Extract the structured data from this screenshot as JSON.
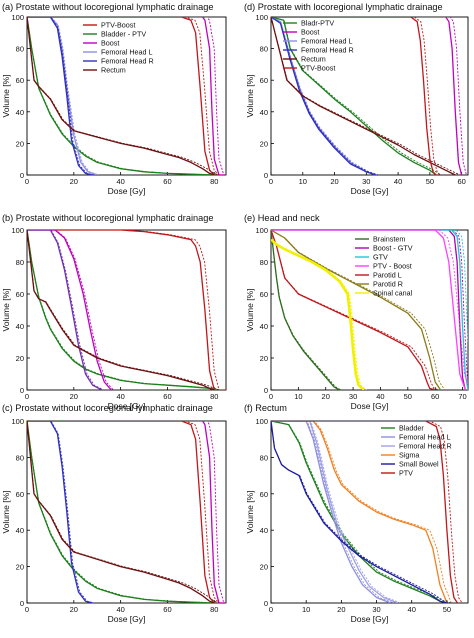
{
  "figure": {
    "panel_count": 6
  },
  "chart_data": [
    {
      "id": "a",
      "type": "line",
      "title": "(a) Prostate without locoregional lymphatic drainage",
      "xlabel": "Dose [Gy]",
      "ylabel": "Volume [%]",
      "xlim": [
        0,
        85
      ],
      "ylim": [
        0,
        100
      ],
      "xticks": [
        0,
        20,
        40,
        60,
        80
      ],
      "yticks": [
        0,
        20,
        40,
        60,
        80,
        100
      ],
      "legend": "top-right",
      "series": [
        {
          "name": "PTV-Boost",
          "color": "#c0171b",
          "x": [
            0,
            66,
            70,
            72,
            74,
            76,
            78,
            80,
            85
          ],
          "y": [
            100,
            100,
            98,
            90,
            55,
            15,
            3,
            0,
            0
          ]
        },
        {
          "name": "Bladder - PTV",
          "color": "#1e7f1e",
          "x": [
            0,
            2,
            5,
            10,
            15,
            20,
            25,
            30,
            40,
            50,
            60,
            70,
            80
          ],
          "y": [
            100,
            80,
            55,
            38,
            26,
            18,
            12,
            8,
            4,
            2,
            1,
            0.5,
            0
          ]
        },
        {
          "name": "Boost",
          "color": "#c000c0",
          "x": [
            0,
            75,
            76,
            78,
            79,
            80,
            82,
            85
          ],
          "y": [
            100,
            100,
            98,
            80,
            40,
            10,
            0,
            0
          ]
        },
        {
          "name": "Femoral Head L",
          "color": "#8f8fe0",
          "x": [
            0,
            10,
            13,
            15,
            17,
            20,
            23,
            26,
            30
          ],
          "y": [
            100,
            100,
            95,
            80,
            55,
            25,
            8,
            2,
            0
          ]
        },
        {
          "name": "Femoral Head R",
          "color": "#3030c0",
          "x": [
            0,
            10,
            13,
            15,
            17,
            19,
            22,
            25,
            28
          ],
          "y": [
            100,
            100,
            93,
            75,
            50,
            22,
            6,
            1,
            0
          ]
        },
        {
          "name": "Rectum",
          "color": "#6b1010",
          "x": [
            0,
            3,
            5,
            10,
            15,
            20,
            30,
            40,
            50,
            60,
            65,
            70,
            75,
            78,
            80
          ],
          "y": [
            100,
            60,
            56,
            48,
            35,
            28,
            24,
            20,
            17,
            13,
            11,
            8,
            4,
            1,
            0
          ]
        }
      ]
    },
    {
      "id": "b",
      "type": "line",
      "title": "(b) Prostate without locoregional lymphatic drainage",
      "xlabel": "Dose [Gy]",
      "ylabel": "Volume [%]",
      "xlim": [
        0,
        85
      ],
      "ylim": [
        0,
        100
      ],
      "xticks": [
        0,
        20,
        40,
        60,
        80
      ],
      "yticks": [
        0,
        20,
        40,
        60,
        80,
        100
      ],
      "series": [
        {
          "color": "#c0171b",
          "x": [
            0,
            40,
            50,
            60,
            70,
            72,
            74,
            76,
            78,
            80,
            85
          ],
          "y": [
            100,
            100,
            99,
            97,
            94,
            90,
            80,
            50,
            12,
            0,
            0
          ]
        },
        {
          "color": "#1e7f1e",
          "x": [
            0,
            2,
            5,
            8,
            10,
            15,
            20,
            25,
            30,
            40,
            50,
            60,
            70,
            78,
            80
          ],
          "y": [
            100,
            80,
            58,
            45,
            38,
            26,
            18,
            13,
            10,
            6,
            4,
            3,
            2,
            1,
            0
          ]
        },
        {
          "color": "#c000c0",
          "x": [
            0,
            12,
            16,
            20,
            24,
            27,
            30,
            33,
            36
          ],
          "y": [
            100,
            100,
            95,
            82,
            60,
            38,
            18,
            5,
            0
          ]
        },
        {
          "color": "#7030b0",
          "x": [
            0,
            10,
            13,
            16,
            19,
            22,
            25,
            28,
            32
          ],
          "y": [
            100,
            100,
            92,
            75,
            52,
            28,
            10,
            3,
            0
          ]
        },
        {
          "color": "#6b1010",
          "x": [
            0,
            3,
            5,
            8,
            10,
            15,
            20,
            30,
            40,
            50,
            60,
            70,
            75,
            78,
            80
          ],
          "y": [
            100,
            62,
            57,
            55,
            50,
            38,
            28,
            20,
            15,
            12,
            9,
            5,
            3,
            1,
            0
          ]
        }
      ]
    },
    {
      "id": "c",
      "type": "line",
      "title": "(c) Prostate without locoregional lymphatic drainage",
      "xlabel": "Dose [Gy]",
      "ylabel": "Volume [%]",
      "xlim": [
        0,
        85
      ],
      "ylim": [
        0,
        100
      ],
      "xticks": [
        0,
        20,
        40,
        60,
        80
      ],
      "yticks": [
        0,
        20,
        40,
        60,
        80,
        100
      ],
      "series": [
        {
          "color": "#c0171b",
          "x": [
            0,
            66,
            70,
            72,
            74,
            76,
            78,
            80,
            85
          ],
          "y": [
            100,
            100,
            98,
            90,
            55,
            15,
            3,
            0,
            0
          ]
        },
        {
          "color": "#1e7f1e",
          "x": [
            0,
            2,
            5,
            10,
            15,
            20,
            25,
            30,
            40,
            50,
            60,
            70,
            80
          ],
          "y": [
            100,
            80,
            55,
            38,
            26,
            18,
            12,
            8,
            4,
            2,
            1,
            0.5,
            0
          ]
        },
        {
          "color": "#c000c0",
          "x": [
            0,
            75,
            76,
            78,
            79,
            80,
            82,
            85
          ],
          "y": [
            100,
            100,
            98,
            80,
            40,
            10,
            0,
            0
          ]
        },
        {
          "color": "#3030c0",
          "x": [
            0,
            10,
            13,
            15,
            17,
            19,
            22,
            25,
            28
          ],
          "y": [
            100,
            100,
            93,
            75,
            50,
            22,
            6,
            1,
            0
          ]
        },
        {
          "color": "#6b1010",
          "x": [
            0,
            3,
            5,
            10,
            15,
            20,
            30,
            40,
            50,
            60,
            65,
            70,
            75,
            78,
            80
          ],
          "y": [
            100,
            60,
            56,
            48,
            35,
            28,
            24,
            20,
            17,
            13,
            11,
            8,
            4,
            1,
            0
          ]
        }
      ]
    },
    {
      "id": "d",
      "type": "line",
      "title": "(d) Prostate with locoregional lymphatic drainage",
      "xlabel": "Dose [Gy]",
      "ylabel": "Volume [%]",
      "xlim": [
        0,
        62
      ],
      "ylim": [
        0,
        100
      ],
      "xticks": [
        0,
        10,
        20,
        30,
        40,
        50,
        60
      ],
      "yticks": [
        0,
        20,
        40,
        60,
        80,
        100
      ],
      "legend": "top-left",
      "series": [
        {
          "name": "Bladr-PTV",
          "color": "#1e7f1e",
          "x": [
            0,
            4,
            6,
            10,
            15,
            20,
            25,
            30,
            35,
            40,
            45,
            50,
            52
          ],
          "y": [
            100,
            98,
            80,
            66,
            57,
            48,
            40,
            31,
            22,
            14,
            8,
            3,
            0
          ]
        },
        {
          "name": "Boost",
          "color": "#c000c0",
          "x": [
            0,
            55,
            56,
            57,
            58,
            59,
            60
          ],
          "y": [
            100,
            100,
            97,
            80,
            40,
            8,
            0
          ]
        },
        {
          "name": "Femoral Head L",
          "color": "#8f8fe0",
          "x": [
            0,
            3,
            6,
            9,
            12,
            15,
            20,
            25,
            30,
            33
          ],
          "y": [
            100,
            97,
            75,
            55,
            40,
            30,
            18,
            8,
            2,
            0
          ]
        },
        {
          "name": "Femoral Head R",
          "color": "#3030c0",
          "x": [
            0,
            3,
            6,
            9,
            12,
            15,
            20,
            25,
            30,
            33
          ],
          "y": [
            100,
            96,
            73,
            53,
            39,
            29,
            17,
            7,
            2,
            0
          ]
        },
        {
          "name": "Rectum",
          "color": "#6b1010",
          "x": [
            0,
            5,
            10,
            15,
            20,
            25,
            30,
            35,
            40,
            45,
            50,
            55,
            58
          ],
          "y": [
            100,
            60,
            50,
            44,
            39,
            34,
            29,
            24,
            19,
            13,
            8,
            3,
            0
          ]
        },
        {
          "name": "PTV-Boost",
          "color": "#c0171b",
          "x": [
            0,
            44,
            46,
            47,
            48,
            49,
            50,
            51,
            52
          ],
          "y": [
            100,
            100,
            97,
            85,
            60,
            30,
            10,
            2,
            0
          ]
        }
      ]
    },
    {
      "id": "e",
      "type": "line",
      "title": "(e) Head and neck",
      "xlabel": "Dose [Gy]",
      "ylabel": "Volume [%]",
      "xlim": [
        0,
        72
      ],
      "ylim": [
        0,
        100
      ],
      "xticks": [
        0,
        10,
        20,
        30,
        40,
        50,
        60,
        70
      ],
      "yticks": [
        0,
        20,
        40,
        60,
        80,
        100
      ],
      "legend": "top-center",
      "series": [
        {
          "name": "Brainstem",
          "color": "#2e6b1e",
          "x": [
            0,
            1,
            2,
            3,
            5,
            8,
            12,
            16,
            20,
            23,
            25
          ],
          "y": [
            100,
            85,
            70,
            58,
            45,
            34,
            24,
            16,
            8,
            2,
            0
          ]
        },
        {
          "name": "Boost - GTV",
          "color": "#b000b0",
          "x": [
            0,
            65,
            67,
            68,
            69,
            70,
            71
          ],
          "y": [
            100,
            100,
            96,
            80,
            40,
            8,
            0
          ]
        },
        {
          "name": "GTV",
          "color": "#20c8d8",
          "x": [
            0,
            66,
            68,
            69,
            70,
            71,
            72
          ],
          "y": [
            100,
            100,
            96,
            80,
            40,
            10,
            0
          ]
        },
        {
          "name": "PTV - Boost",
          "color": "#ff40ff",
          "x": [
            0,
            60,
            63,
            65,
            67,
            69,
            71
          ],
          "y": [
            100,
            100,
            95,
            80,
            45,
            10,
            0
          ]
        },
        {
          "name": "Parotid L",
          "color": "#c0171b",
          "x": [
            0,
            2,
            5,
            10,
            20,
            30,
            40,
            50,
            55,
            57,
            58,
            60
          ],
          "y": [
            100,
            90,
            70,
            60,
            52,
            44,
            36,
            27,
            15,
            5,
            1,
            0
          ]
        },
        {
          "name": "Parotid R",
          "color": "#8b7a1a",
          "x": [
            0,
            5,
            10,
            20,
            30,
            40,
            50,
            55,
            58,
            60,
            62
          ],
          "y": [
            100,
            95,
            86,
            76,
            67,
            58,
            48,
            38,
            20,
            5,
            0
          ]
        },
        {
          "name": "Spinal canal",
          "color": "#f0f000",
          "x": [
            0,
            2,
            5,
            10,
            15,
            20,
            25,
            28,
            29,
            30,
            31,
            32,
            34
          ],
          "y": [
            94,
            91,
            88,
            84,
            80,
            75,
            68,
            60,
            45,
            25,
            10,
            3,
            0
          ]
        }
      ]
    },
    {
      "id": "f",
      "type": "line",
      "title": "(f) Rectum",
      "xlabel": "Dose [Gy]",
      "ylabel": "Volume [%]",
      "xlim": [
        0,
        56
      ],
      "ylim": [
        0,
        100
      ],
      "xticks": [
        0,
        10,
        20,
        30,
        40,
        50
      ],
      "yticks": [
        0,
        20,
        40,
        60,
        80,
        100
      ],
      "legend": "top-right",
      "series": [
        {
          "name": "Bladder",
          "color": "#1e7f1e",
          "x": [
            0,
            5,
            8,
            10,
            15,
            20,
            25,
            30,
            35,
            40,
            45,
            48,
            50
          ],
          "y": [
            100,
            98,
            88,
            77,
            55,
            38,
            26,
            17,
            12,
            8,
            4,
            1,
            0
          ]
        },
        {
          "name": "Femoral Head L",
          "color": "#8f8fe0",
          "x": [
            0,
            10,
            12,
            15,
            18,
            20,
            23,
            26,
            30,
            34
          ],
          "y": [
            100,
            100,
            90,
            65,
            45,
            33,
            20,
            10,
            3,
            0
          ]
        },
        {
          "name": "Femoral Head R",
          "color": "#a0a0e8",
          "x": [
            0,
            11,
            13,
            16,
            19,
            22,
            25,
            28,
            32,
            36
          ],
          "y": [
            100,
            100,
            88,
            62,
            42,
            30,
            18,
            9,
            3,
            0
          ]
        },
        {
          "name": "Sigma",
          "color": "#f08020",
          "x": [
            0,
            12,
            14,
            16,
            18,
            20,
            25,
            30,
            35,
            40,
            44,
            46,
            48,
            50
          ],
          "y": [
            100,
            100,
            95,
            85,
            73,
            65,
            56,
            50,
            46,
            43,
            40,
            30,
            10,
            0
          ]
        },
        {
          "name": "Small Bowel",
          "color": "#1c1ca0",
          "x": [
            0,
            1,
            3,
            5,
            8,
            10,
            15,
            20,
            25,
            30,
            35,
            40,
            45,
            48,
            50
          ],
          "y": [
            100,
            85,
            76,
            73,
            70,
            60,
            44,
            34,
            26,
            20,
            15,
            10,
            5,
            1,
            0
          ]
        },
        {
          "name": "PTV",
          "color": "#c0171b",
          "x": [
            0,
            44,
            47,
            48,
            49,
            50,
            51,
            52,
            53
          ],
          "y": [
            100,
            100,
            97,
            90,
            70,
            40,
            15,
            3,
            0
          ]
        }
      ]
    }
  ]
}
